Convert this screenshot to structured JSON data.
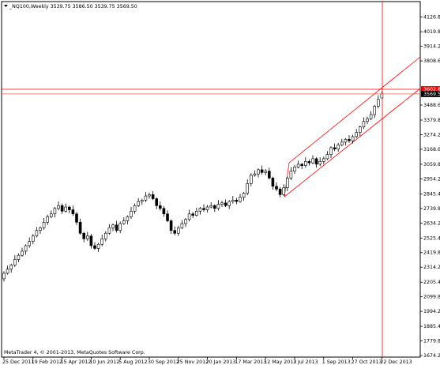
{
  "chart_data": {
    "type": "candlestick",
    "header": "_NQ100,Weekly  3539.75 3586.50 3539.75 3569.50",
    "footer": "MetaTrader 4, © 2001-2013, MetaQuotes Software Corp.",
    "up_color": "#ffffff",
    "down_color": "#000000",
    "line_color": "#000000",
    "ylim": [
      1662.8,
      4232.6
    ],
    "yticks": [
      {
        "value": 4126.8,
        "label": "4126.80"
      },
      {
        "value": 4019.8,
        "label": "4019.80"
      },
      {
        "value": 3914.2,
        "label": "3914.20"
      },
      {
        "value": 3808.6,
        "label": "3808.60"
      },
      {
        "value": 3488.6,
        "label": "3488.60"
      },
      {
        "value": 3379.8,
        "label": "3379.80"
      },
      {
        "value": 3274.2,
        "label": "3274.20"
      },
      {
        "value": 3168.6,
        "label": "3168.60"
      },
      {
        "value": 3059.8,
        "label": "3059.80"
      },
      {
        "value": 2954.2,
        "label": "2954.20"
      },
      {
        "value": 2845.4,
        "label": "2845.40"
      },
      {
        "value": 2739.8,
        "label": "2739.80"
      },
      {
        "value": 2634.2,
        "label": "2634.20"
      },
      {
        "value": 2525.4,
        "label": "2525.40"
      },
      {
        "value": 2419.8,
        "label": "2419.80"
      },
      {
        "value": 2314.2,
        "label": "2314.20"
      },
      {
        "value": 2205.4,
        "label": "2205.40"
      },
      {
        "value": 2099.8,
        "label": "2099.80"
      },
      {
        "value": 1994.2,
        "label": "1994.20"
      },
      {
        "value": 1885.4,
        "label": "1885.40"
      },
      {
        "value": 1779.8,
        "label": "1779.80"
      },
      {
        "value": 1674.2,
        "label": "1674.20"
      }
    ],
    "levels": [
      {
        "value": 3602.87,
        "label": "3602.87",
        "color": "#ff0000",
        "line_color": "#ff0000"
      },
      {
        "value": 3569.5,
        "label": "3569.50",
        "color": "#000000",
        "line_color": "#e06060"
      }
    ],
    "categories": [
      "25 Dec 2011",
      null,
      null,
      null,
      null,
      null,
      null,
      null,
      "19 Feb 2012",
      null,
      null,
      null,
      null,
      null,
      null,
      null,
      "15 Apr 2012",
      null,
      null,
      null,
      null,
      null,
      null,
      null,
      "10 Jun 2012",
      null,
      null,
      null,
      null,
      null,
      null,
      null,
      "5 Aug 2012",
      null,
      null,
      null,
      null,
      null,
      null,
      null,
      "30 Sep 2012",
      null,
      null,
      null,
      null,
      null,
      null,
      null,
      "25 Nov 2012",
      null,
      null,
      null,
      null,
      null,
      null,
      null,
      "20 Jan 2013",
      null,
      null,
      null,
      null,
      null,
      null,
      null,
      "17 Mar 2013",
      null,
      null,
      null,
      null,
      null,
      null,
      null,
      "12 May 2013",
      null,
      null,
      null,
      null,
      null,
      null,
      null,
      "7 Jul 2013",
      null,
      null,
      null,
      null,
      null,
      null,
      null,
      "1 Sep 2013",
      null,
      null,
      null,
      null,
      null,
      null,
      null,
      "27 Oct 2013",
      null,
      null,
      null,
      null,
      null,
      null,
      null,
      "22 Dec 2013"
    ],
    "open": [
      2230,
      2270,
      2300,
      2330,
      2370,
      2400,
      2430,
      2470,
      2500,
      2540,
      2580,
      2600,
      2640,
      2680,
      2700,
      2740,
      2760,
      2720,
      2750,
      2730,
      2700,
      2640,
      2560,
      2520,
      2540,
      2470,
      2450,
      2480,
      2520,
      2560,
      2600,
      2620,
      2580,
      2630,
      2650,
      2680,
      2720,
      2760,
      2790,
      2800,
      2830,
      2840,
      2810,
      2760,
      2740,
      2700,
      2650,
      2580,
      2560,
      2600,
      2630,
      2660,
      2700,
      2690,
      2720,
      2740,
      2730,
      2750,
      2760,
      2740,
      2770,
      2780,
      2760,
      2790,
      2800,
      2790,
      2820,
      2850,
      2920,
      2980,
      2990,
      3020,
      3000,
      3010,
      2960,
      2900,
      2880,
      2840,
      2890,
      2960,
      3010,
      3040,
      3060,
      3050,
      3080,
      3070,
      3100,
      3060,
      3080,
      3100,
      3130,
      3180,
      3170,
      3200,
      3220,
      3240,
      3230,
      3260,
      3290,
      3330,
      3370,
      3390,
      3420,
      3480,
      3539.75
    ],
    "high": [
      2285,
      2325,
      2340,
      2400,
      2415,
      2455,
      2480,
      2530,
      2555,
      2605,
      2610,
      2670,
      2695,
      2725,
      2750,
      2790,
      2775,
      2775,
      2760,
      2760,
      2715,
      2665,
      2570,
      2570,
      2555,
      2495,
      2490,
      2550,
      2575,
      2625,
      2630,
      2650,
      2645,
      2675,
      2690,
      2750,
      2775,
      2815,
      2810,
      2860,
      2855,
      2865,
      2820,
      2790,
      2755,
      2725,
      2660,
      2610,
      2615,
      2655,
      2670,
      2730,
      2715,
      2745,
      2750,
      2770,
      2765,
      2785,
      2770,
      2800,
      2795,
      2805,
      2800,
      2830,
      2815,
      2845,
      2860,
      2950,
      2995,
      3015,
      3030,
      3050,
      3025,
      3035,
      2970,
      2930,
      2895,
      2915,
      2970,
      3040,
      3055,
      3085,
      3070,
      3110,
      3095,
      3125,
      3110,
      3110,
      3115,
      3155,
      3190,
      3210,
      3215,
      3245,
      3250,
      3270,
      3275,
      3315,
      3340,
      3400,
      3405,
      3445,
      3490,
      3560,
      3586.5
    ],
    "low": [
      2210,
      2260,
      2275,
      2315,
      2350,
      2390,
      2405,
      2455,
      2480,
      2530,
      2555,
      2585,
      2620,
      2670,
      2675,
      2725,
      2700,
      2710,
      2705,
      2685,
      2620,
      2550,
      2495,
      2505,
      2450,
      2440,
      2425,
      2465,
      2500,
      2550,
      2575,
      2565,
      2560,
      2620,
      2625,
      2665,
      2700,
      2750,
      2765,
      2785,
      2810,
      2800,
      2735,
      2725,
      2680,
      2640,
      2555,
      2545,
      2540,
      2590,
      2605,
      2645,
      2670,
      2680,
      2695,
      2715,
      2710,
      2740,
      2715,
      2725,
      2750,
      2750,
      2735,
      2775,
      2770,
      2780,
      2795,
      2835,
      2900,
      2970,
      2965,
      2985,
      2980,
      2950,
      2875,
      2865,
      2820,
      2830,
      2865,
      2945,
      2990,
      3030,
      3025,
      3035,
      3050,
      3060,
      3035,
      3045,
      3060,
      3090,
      3105,
      3155,
      3150,
      3190,
      3195,
      3215,
      3210,
      3250,
      3265,
      3315,
      3350,
      3380,
      3395,
      3465,
      3539.75
    ],
    "close": [
      2270,
      2300,
      2330,
      2370,
      2400,
      2430,
      2470,
      2500,
      2540,
      2580,
      2600,
      2640,
      2680,
      2700,
      2740,
      2760,
      2720,
      2750,
      2730,
      2700,
      2640,
      2560,
      2520,
      2540,
      2470,
      2450,
      2480,
      2520,
      2560,
      2600,
      2620,
      2580,
      2630,
      2650,
      2680,
      2720,
      2760,
      2790,
      2800,
      2830,
      2840,
      2810,
      2760,
      2740,
      2700,
      2650,
      2580,
      2560,
      2600,
      2630,
      2660,
      2700,
      2690,
      2720,
      2740,
      2730,
      2750,
      2760,
      2740,
      2770,
      2780,
      2760,
      2790,
      2800,
      2790,
      2820,
      2850,
      2920,
      2980,
      2990,
      3020,
      3000,
      3010,
      2960,
      2900,
      2880,
      2840,
      2890,
      2960,
      3010,
      3040,
      3060,
      3050,
      3080,
      3070,
      3100,
      3060,
      3080,
      3100,
      3130,
      3180,
      3170,
      3200,
      3220,
      3240,
      3230,
      3260,
      3290,
      3330,
      3370,
      3390,
      3420,
      3480,
      3530,
      3569.5
    ]
  }
}
